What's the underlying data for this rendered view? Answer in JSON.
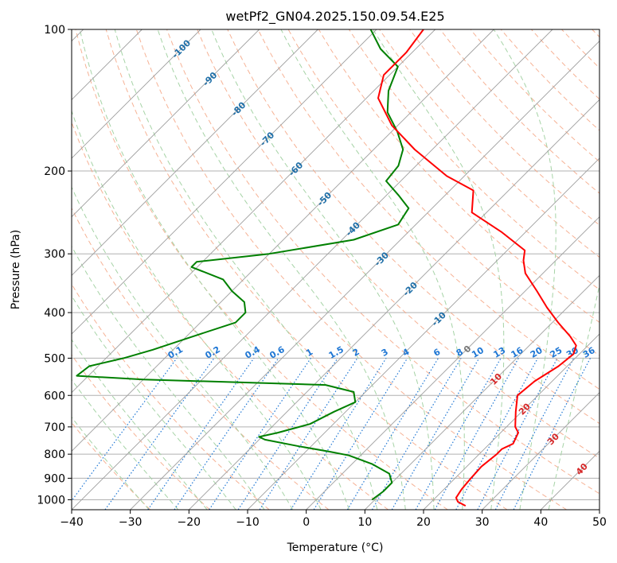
{
  "chart_data": {
    "type": "line",
    "diagram": "skew-t log-p",
    "title": "wetPf2_GN04.2025.150.09.54.E25",
    "xlabel": "Temperature (°C)",
    "ylabel": "Pressure (hPa)",
    "xlim": [
      -40,
      50
    ],
    "ylim": [
      1050,
      100
    ],
    "y_scale": "log",
    "grid": true,
    "x_ticks": [
      "−40",
      "−30",
      "−20",
      "−10",
      "0",
      "10",
      "20",
      "30",
      "40",
      "50"
    ],
    "y_ticks": [
      "100",
      "200",
      "300",
      "400",
      "500",
      "600",
      "700",
      "800",
      "900",
      "1000"
    ],
    "colors": {
      "temperature": "#ff0000",
      "dewpoint": "#008000",
      "isotherm": "#9e9e9e",
      "dry_adiabat": "#f4a582",
      "moist_adiabat": "#a6d3a6",
      "mixing_ratio": "#1f77d4",
      "isotherm_label_blue": "#1f6fa8",
      "isotherm_label_red": "#d62728",
      "isotherm_label_zero": "#777777"
    },
    "series": [
      {
        "role": "temperature",
        "pressure": [
          1030,
          1010,
          990,
          950,
          900,
          850,
          800,
          780,
          760,
          720,
          700,
          650,
          600,
          560,
          520,
          490,
          470,
          450,
          420,
          390,
          360,
          330,
          310,
          295,
          270,
          245,
          220,
          205,
          180,
          160,
          140,
          125,
          112,
          100
        ],
        "temperature": [
          26.5,
          24.5,
          23.5,
          23.0,
          22.7,
          22.5,
          23.0,
          23.0,
          24.0,
          23.0,
          21.5,
          19.0,
          16.5,
          17.0,
          18.5,
          19.0,
          18.0,
          15.5,
          11.0,
          6.5,
          2.0,
          -3.0,
          -5.5,
          -7.0,
          -14.0,
          -22.5,
          -26.0,
          -33.0,
          -43.0,
          -51.0,
          -58.0,
          -61.0,
          -61.0,
          -62.0
        ]
      },
      {
        "role": "dewpoint",
        "pressure": [
          1000,
          960,
          920,
          880,
          840,
          805,
          790,
          770,
          745,
          735,
          720,
          690,
          650,
          620,
          590,
          570,
          555,
          545,
          520,
          500,
          480,
          450,
          420,
          400,
          380,
          360,
          340,
          320,
          312,
          300,
          280,
          260,
          240,
          225,
          210,
          195,
          180,
          165,
          150,
          135,
          120,
          110,
          100
        ],
        "temperature": [
          9.5,
          10.0,
          10.0,
          8.0,
          3.5,
          -2.0,
          -6.0,
          -12.0,
          -19.0,
          -20.5,
          -18.0,
          -14.0,
          -12.0,
          -10.0,
          -12.0,
          -18.0,
          -50.0,
          -62.0,
          -61.5,
          -57.0,
          -53.5,
          -49.0,
          -44.0,
          -44.0,
          -46.0,
          -50.0,
          -53.5,
          -61.0,
          -61.0,
          -50.0,
          -38.0,
          -33.0,
          -34.0,
          -38.0,
          -42.5,
          -43.0,
          -45.0,
          -49.0,
          -54.0,
          -57.5,
          -60.0,
          -66.0,
          -71.0
        ]
      }
    ],
    "isotherm_labels": [
      "-100",
      "-90",
      "-80",
      "-70",
      "-60",
      "-50",
      "-40",
      "-30",
      "-20",
      "-10",
      "0",
      "10",
      "20",
      "30",
      "40"
    ],
    "mixing_ratio_lines": [
      0.1,
      0.2,
      0.4,
      0.6,
      1,
      1.5,
      2,
      3,
      4,
      6,
      8,
      10,
      13,
      16,
      20,
      25,
      30,
      36
    ],
    "mixing_ratio_labels": [
      "0.1",
      "0.2",
      "0.4",
      "0.6",
      "1",
      "1.5",
      "2",
      "3",
      "4",
      "6",
      "8",
      "10",
      "13",
      "16",
      "20",
      "25",
      "30",
      "36"
    ]
  }
}
